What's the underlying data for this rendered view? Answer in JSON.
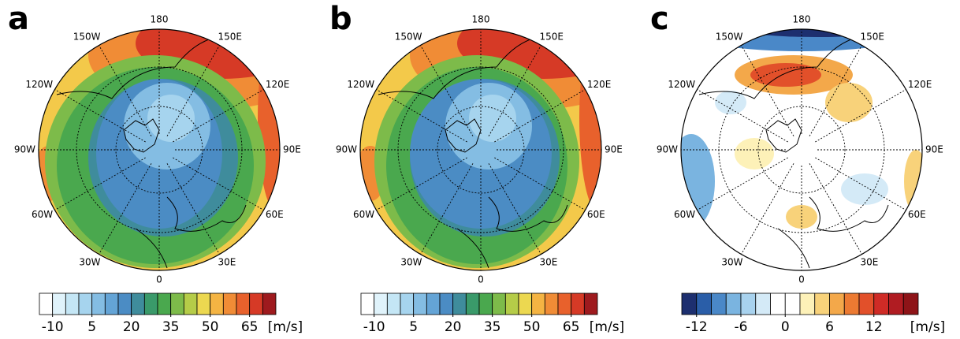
{
  "panels": [
    {
      "letter": "a",
      "lon_labels": [
        "180",
        "150E",
        "120E",
        "90E",
        "60E",
        "30E",
        "0",
        "30W",
        "60W",
        "90W",
        "120W",
        "150W"
      ],
      "colorbar": {
        "lim": [
          -15,
          75
        ],
        "ticks": [
          -10,
          5,
          20,
          35,
          50,
          65
        ],
        "unit": "[m/s]",
        "colors": [
          "#ffffff",
          "#e0f3fb",
          "#c4e6f5",
          "#a6d4ee",
          "#84bde3",
          "#64a4d6",
          "#4b8cc4",
          "#3f8c9c",
          "#3a9a6a",
          "#4aa84e",
          "#7dbb4a",
          "#b5cc48",
          "#ecd850",
          "#f4b443",
          "#f08c36",
          "#e8612c",
          "#d63a26",
          "#9e1a1e"
        ]
      }
    },
    {
      "letter": "b",
      "lon_labels": [
        "180",
        "150E",
        "120E",
        "90E",
        "60E",
        "30E",
        "0",
        "30W",
        "60W",
        "90W",
        "120W",
        "150W"
      ],
      "colorbar": {
        "lim": [
          -15,
          75
        ],
        "ticks": [
          -10,
          5,
          20,
          35,
          50,
          65
        ],
        "unit": "[m/s]",
        "colors": [
          "#ffffff",
          "#e0f3fb",
          "#c4e6f5",
          "#a6d4ee",
          "#84bde3",
          "#64a4d6",
          "#4b8cc4",
          "#3f8c9c",
          "#3a9a6a",
          "#4aa84e",
          "#7dbb4a",
          "#b5cc48",
          "#ecd850",
          "#f4b443",
          "#f08c36",
          "#e8612c",
          "#d63a26",
          "#9e1a1e"
        ]
      }
    },
    {
      "letter": "c",
      "lon_labels": [
        "180",
        "150E",
        "120E",
        "90E",
        "60E",
        "30E",
        "0",
        "30W",
        "60W",
        "90W",
        "120W",
        "150W"
      ],
      "colorbar": {
        "lim": [
          -14,
          18
        ],
        "ticks": [
          -12,
          -6,
          0,
          6,
          12
        ],
        "unit": "[m/s]",
        "colors": [
          "#1d2f6f",
          "#2a5ea8",
          "#4a88c8",
          "#7ab4e0",
          "#a8d2ee",
          "#d4eaf7",
          "#ffffff",
          "#ffffff",
          "#fdf1b8",
          "#f8d27a",
          "#f3a84a",
          "#ec7a32",
          "#e2502a",
          "#cf2b26",
          "#b01c22",
          "#8e1418"
        ]
      }
    }
  ]
}
